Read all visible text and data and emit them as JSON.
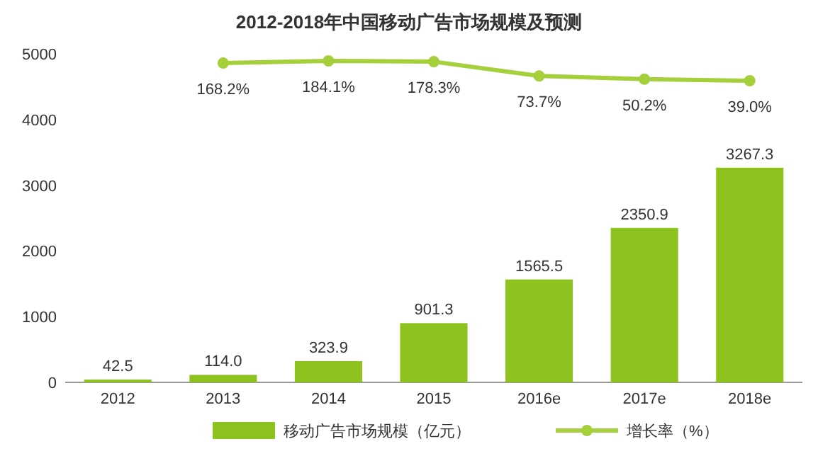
{
  "chart_data": {
    "type": "bar",
    "title": "2012-2018年中国移动广告市场规模及预测",
    "categories": [
      "2012",
      "2013",
      "2014",
      "2015",
      "2016e",
      "2017e",
      "2018e"
    ],
    "ylim": [
      0,
      5000
    ],
    "yticks": [
      0,
      1000,
      2000,
      3000,
      4000,
      5000
    ],
    "grid": false,
    "legend": "bottom",
    "tick_labels": "xy",
    "series": [
      {
        "name": "移动广告市场规模（亿元）",
        "color": "#8dc21f",
        "values": [
          42.5,
          114.0,
          323.9,
          901.3,
          1565.5,
          2350.9,
          3267.3
        ],
        "value_labels": [
          "42.5",
          "114.0",
          "323.9",
          "901.3",
          "1565.5",
          "2350.9",
          "3267.3"
        ]
      },
      {
        "name": "增长率（%）",
        "type": "line",
        "axis": "y2",
        "color": "#a5cf3b",
        "marker": "circle",
        "values": [
          null,
          168.2,
          184.1,
          178.3,
          73.7,
          50.2,
          39.0
        ],
        "value_labels": [
          null,
          "168.2%",
          "184.1%",
          "178.3%",
          "73.7%",
          "50.2%",
          "39.0%"
        ]
      }
    ]
  }
}
